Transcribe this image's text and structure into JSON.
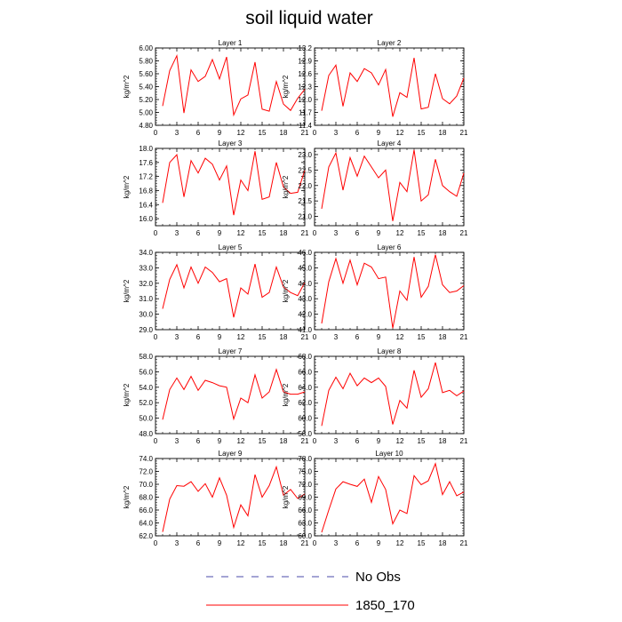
{
  "title": "soil liquid water",
  "legend": {
    "items": [
      {
        "label": "No Obs",
        "color": "#4a4aa8",
        "dash": "dashed"
      },
      {
        "label": "1850_170",
        "color": "#ff0000",
        "dash": "solid"
      }
    ]
  },
  "chart_data": [
    {
      "type": "line",
      "title": "Layer 1",
      "ylabel": "kg/m^2",
      "xlim": [
        0,
        21
      ],
      "ylim": [
        4.8,
        6.0
      ],
      "xticks": [
        0,
        3,
        6,
        9,
        12,
        15,
        18,
        21
      ],
      "yticks": [
        4.8,
        5.0,
        5.2,
        5.4,
        5.6,
        5.8,
        6.0
      ],
      "ytick_decimals": 2,
      "x": [
        1,
        2,
        3,
        4,
        5,
        6,
        7,
        8,
        9,
        10,
        11,
        12,
        13,
        14,
        15,
        16,
        17,
        18,
        19,
        20,
        21
      ],
      "series": [
        {
          "name": "1850_170",
          "color": "#ff0000",
          "values": [
            5.1,
            5.65,
            5.88,
            4.99,
            5.66,
            5.48,
            5.56,
            5.82,
            5.52,
            5.86,
            4.96,
            5.21,
            5.27,
            5.78,
            5.05,
            5.02,
            5.48,
            5.13,
            5.03,
            5.22,
            5.36
          ]
        }
      ]
    },
    {
      "type": "line",
      "title": "Layer 2",
      "ylabel": "kg/m^2",
      "xlim": [
        0,
        21
      ],
      "ylim": [
        11.4,
        13.2
      ],
      "xticks": [
        0,
        3,
        6,
        9,
        12,
        15,
        18,
        21
      ],
      "yticks": [
        11.4,
        11.7,
        12.0,
        12.3,
        12.6,
        12.9,
        13.2
      ],
      "ytick_decimals": 1,
      "x": [
        1,
        2,
        3,
        4,
        5,
        6,
        7,
        8,
        9,
        10,
        11,
        12,
        13,
        14,
        15,
        16,
        17,
        18,
        19,
        20,
        21
      ],
      "series": [
        {
          "name": "1850_170",
          "color": "#ff0000",
          "values": [
            11.74,
            12.56,
            12.8,
            11.84,
            12.62,
            12.42,
            12.72,
            12.62,
            12.34,
            12.7,
            11.6,
            12.16,
            12.05,
            12.97,
            11.78,
            11.82,
            12.6,
            12.02,
            11.9,
            12.08,
            12.5
          ]
        }
      ]
    },
    {
      "type": "line",
      "title": "Layer 3",
      "ylabel": "kg/m^2",
      "xlim": [
        0,
        21
      ],
      "ylim": [
        15.8,
        18.0
      ],
      "xticks": [
        0,
        3,
        6,
        9,
        12,
        15,
        18,
        21
      ],
      "yticks": [
        16.0,
        16.4,
        16.8,
        17.2,
        17.6,
        18.0
      ],
      "ytick_decimals": 1,
      "x": [
        1,
        2,
        3,
        4,
        5,
        6,
        7,
        8,
        9,
        10,
        11,
        12,
        13,
        14,
        15,
        16,
        17,
        18,
        19,
        20,
        21
      ],
      "series": [
        {
          "name": "1850_170",
          "color": "#ff0000",
          "values": [
            16.45,
            17.6,
            17.82,
            16.62,
            17.65,
            17.3,
            17.72,
            17.55,
            17.1,
            17.5,
            16.1,
            17.1,
            16.8,
            17.92,
            16.55,
            16.62,
            17.6,
            16.9,
            16.72,
            16.75,
            17.38
          ]
        }
      ]
    },
    {
      "type": "line",
      "title": "Layer 4",
      "ylabel": "kg/m^2",
      "xlim": [
        0,
        21
      ],
      "ylim": [
        20.7,
        23.2
      ],
      "xticks": [
        0,
        3,
        6,
        9,
        12,
        15,
        18,
        21
      ],
      "yticks": [
        21.0,
        21.5,
        22.0,
        22.5,
        23.0
      ],
      "ytick_decimals": 1,
      "x": [
        1,
        2,
        3,
        4,
        5,
        6,
        7,
        8,
        9,
        10,
        11,
        12,
        13,
        14,
        15,
        16,
        17,
        18,
        19,
        20,
        21
      ],
      "series": [
        {
          "name": "1850_170",
          "color": "#ff0000",
          "values": [
            21.25,
            22.6,
            23.05,
            21.85,
            22.9,
            22.3,
            22.95,
            22.6,
            22.25,
            22.5,
            20.85,
            22.1,
            21.8,
            23.15,
            21.5,
            21.7,
            22.85,
            22.0,
            21.8,
            21.65,
            22.4
          ]
        }
      ]
    },
    {
      "type": "line",
      "title": "Layer 5",
      "ylabel": "kg/m^2",
      "xlim": [
        0,
        21
      ],
      "ylim": [
        29.0,
        34.0
      ],
      "xticks": [
        0,
        3,
        6,
        9,
        12,
        15,
        18,
        21
      ],
      "yticks": [
        29.0,
        30.0,
        31.0,
        32.0,
        33.0,
        34.0
      ],
      "ytick_decimals": 1,
      "x": [
        1,
        2,
        3,
        4,
        5,
        6,
        7,
        8,
        9,
        10,
        11,
        12,
        13,
        14,
        15,
        16,
        17,
        18,
        19,
        20,
        21
      ],
      "series": [
        {
          "name": "1850_170",
          "color": "#ff0000",
          "values": [
            30.35,
            32.25,
            33.2,
            31.7,
            33.05,
            32.0,
            33.05,
            32.7,
            32.1,
            32.3,
            29.8,
            31.7,
            31.3,
            33.25,
            31.1,
            31.4,
            33.05,
            31.75,
            31.4,
            31.2,
            32.05
          ]
        }
      ]
    },
    {
      "type": "line",
      "title": "Layer 6",
      "ylabel": "kg/m^2",
      "xlim": [
        0,
        21
      ],
      "ylim": [
        41.0,
        46.0
      ],
      "xticks": [
        0,
        3,
        6,
        9,
        12,
        15,
        18,
        21
      ],
      "yticks": [
        41.0,
        42.0,
        43.0,
        44.0,
        45.0,
        46.0
      ],
      "ytick_decimals": 1,
      "x": [
        1,
        2,
        3,
        4,
        5,
        6,
        7,
        8,
        9,
        10,
        11,
        12,
        13,
        14,
        15,
        16,
        17,
        18,
        19,
        20,
        21
      ],
      "series": [
        {
          "name": "1850_170",
          "color": "#ff0000",
          "values": [
            41.4,
            44.1,
            45.6,
            44.0,
            45.5,
            43.9,
            45.3,
            45.05,
            44.3,
            44.4,
            41.1,
            43.5,
            42.9,
            45.7,
            43.1,
            43.8,
            45.85,
            43.9,
            43.4,
            43.5,
            43.85
          ]
        }
      ]
    },
    {
      "type": "line",
      "title": "Layer 7",
      "ylabel": "kg/m^2",
      "xlim": [
        0,
        21
      ],
      "ylim": [
        48.0,
        58.0
      ],
      "xticks": [
        0,
        3,
        6,
        9,
        12,
        15,
        18,
        21
      ],
      "yticks": [
        48.0,
        50.0,
        52.0,
        54.0,
        56.0,
        58.0
      ],
      "ytick_decimals": 1,
      "x": [
        1,
        2,
        3,
        4,
        5,
        6,
        7,
        8,
        9,
        10,
        11,
        12,
        13,
        14,
        15,
        16,
        17,
        18,
        19,
        20,
        21
      ],
      "series": [
        {
          "name": "1850_170",
          "color": "#ff0000",
          "values": [
            49.8,
            53.7,
            55.2,
            53.7,
            55.4,
            53.6,
            54.9,
            54.6,
            54.2,
            54.0,
            49.9,
            52.6,
            52.0,
            55.6,
            52.6,
            53.4,
            56.3,
            53.4,
            53.1,
            53.1,
            53.4
          ]
        }
      ]
    },
    {
      "type": "line",
      "title": "Layer 8",
      "ylabel": "kg/m^2",
      "xlim": [
        0,
        21
      ],
      "ylim": [
        58.0,
        68.0
      ],
      "xticks": [
        0,
        3,
        6,
        9,
        12,
        15,
        18,
        21
      ],
      "yticks": [
        58.0,
        60.0,
        62.0,
        64.0,
        66.0,
        68.0
      ],
      "ytick_decimals": 1,
      "x": [
        1,
        2,
        3,
        4,
        5,
        6,
        7,
        8,
        9,
        10,
        11,
        12,
        13,
        14,
        15,
        16,
        17,
        18,
        19,
        20,
        21
      ],
      "series": [
        {
          "name": "1850_170",
          "color": "#ff0000",
          "values": [
            59.0,
            63.6,
            65.3,
            63.8,
            65.8,
            64.2,
            65.2,
            64.6,
            65.2,
            64.1,
            59.2,
            62.3,
            61.3,
            66.2,
            62.7,
            63.8,
            67.2,
            63.3,
            63.6,
            62.9,
            63.5
          ]
        }
      ]
    },
    {
      "type": "line",
      "title": "Layer 9",
      "ylabel": "kg/m^2",
      "xlim": [
        0,
        21
      ],
      "ylim": [
        62.0,
        74.0
      ],
      "xticks": [
        0,
        3,
        6,
        9,
        12,
        15,
        18,
        21
      ],
      "yticks": [
        62.0,
        64.0,
        66.0,
        68.0,
        70.0,
        72.0,
        74.0
      ],
      "ytick_decimals": 1,
      "x": [
        1,
        2,
        3,
        4,
        5,
        6,
        7,
        8,
        9,
        10,
        11,
        12,
        13,
        14,
        15,
        16,
        17,
        18,
        19,
        20,
        21
      ],
      "series": [
        {
          "name": "1850_170",
          "color": "#ff0000",
          "values": [
            62.6,
            67.7,
            69.8,
            69.7,
            70.4,
            68.9,
            70.1,
            68.0,
            71.0,
            68.3,
            63.3,
            66.8,
            65.1,
            71.5,
            68.0,
            69.8,
            72.7,
            68.3,
            69.2,
            67.8,
            68.5
          ]
        }
      ]
    },
    {
      "type": "line",
      "title": "Layer 10",
      "ylabel": "kg/m^2",
      "xlim": [
        0,
        21
      ],
      "ylim": [
        60.0,
        78.0
      ],
      "xticks": [
        0,
        3,
        6,
        9,
        12,
        15,
        18,
        21
      ],
      "yticks": [
        60.0,
        63.0,
        66.0,
        69.0,
        72.0,
        75.0,
        78.0
      ],
      "ytick_decimals": 1,
      "x": [
        1,
        2,
        3,
        4,
        5,
        6,
        7,
        8,
        9,
        10,
        11,
        12,
        13,
        14,
        15,
        16,
        17,
        18,
        19,
        20,
        21
      ],
      "series": [
        {
          "name": "1850_170",
          "color": "#ff0000",
          "values": [
            60.8,
            66.0,
            70.9,
            72.6,
            72.0,
            71.5,
            73.2,
            67.8,
            73.8,
            70.8,
            62.8,
            66.0,
            65.2,
            74.0,
            71.9,
            72.8,
            76.8,
            69.6,
            72.6,
            69.3,
            70.2
          ]
        }
      ]
    }
  ]
}
